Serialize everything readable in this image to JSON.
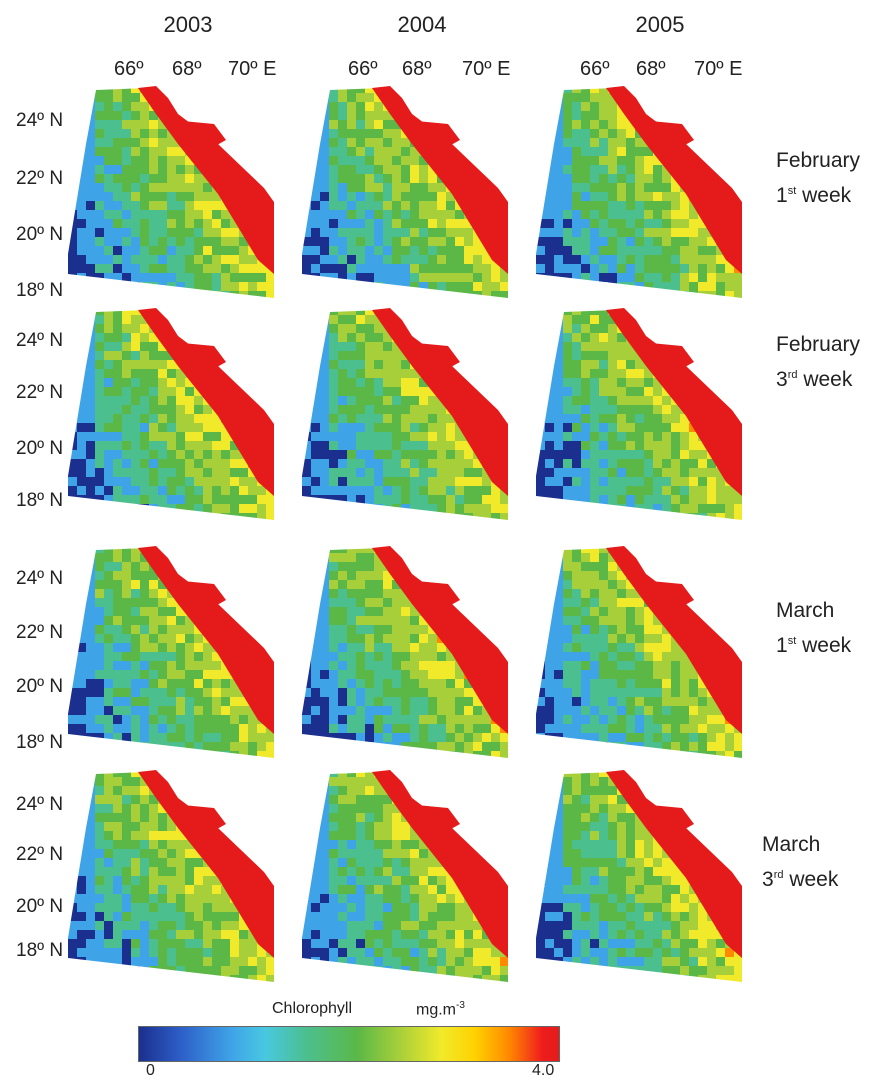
{
  "years": [
    "2003",
    "2004",
    "2005"
  ],
  "longitude_labels": [
    "66º",
    "68º",
    "70º E"
  ],
  "latitude_labels": [
    "24º N",
    "22º N",
    "20º N",
    "18º N"
  ],
  "periods": [
    {
      "month": "February",
      "ord": "1",
      "sup": "st",
      "word": "week"
    },
    {
      "month": "February",
      "ord": "3",
      "sup": "rd",
      "word": "week"
    },
    {
      "month": "March",
      "ord": "1",
      "sup": "st",
      "word": "week"
    },
    {
      "month": "March",
      "ord": "3",
      "sup": "rd",
      "word": "week"
    }
  ],
  "colorbar": {
    "variable": "Chlorophyll",
    "unit": "mg.m",
    "unit_sup": "-3",
    "min": "0",
    "max": "4.0",
    "colors": [
      "#1b2f8f",
      "#3fa3e8",
      "#5bb847",
      "#f0ea2a",
      "#ff8a00",
      "#e51b1b"
    ]
  }
}
